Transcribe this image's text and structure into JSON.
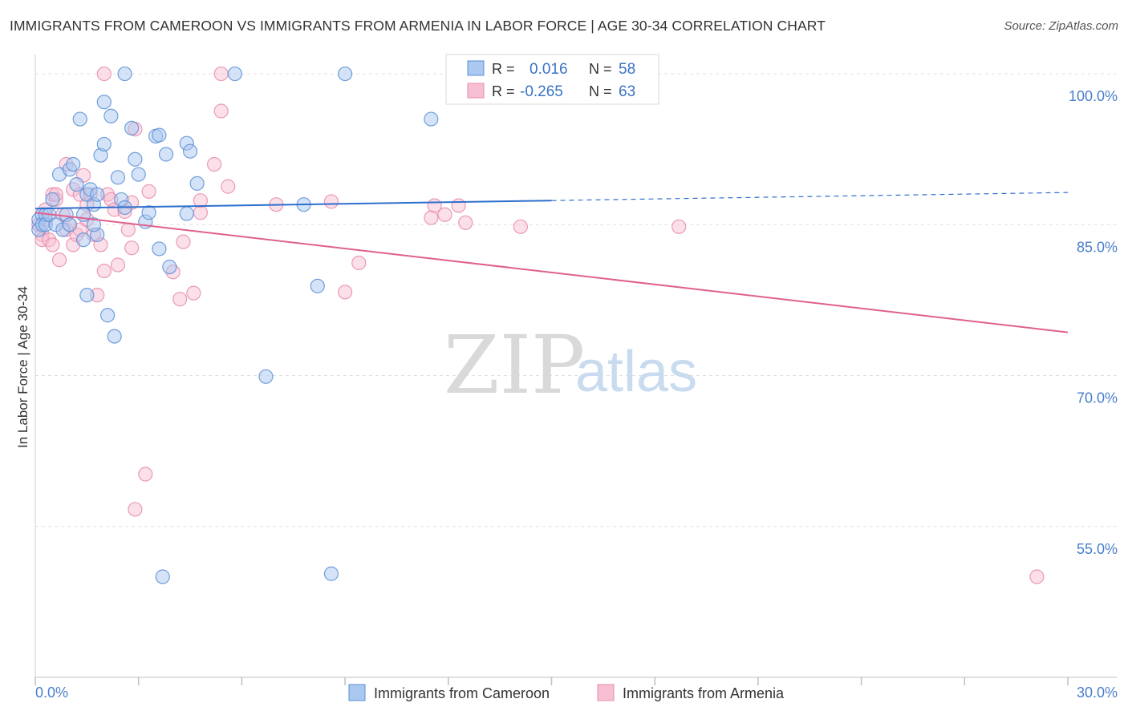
{
  "title": "IMMIGRANTS FROM CAMEROON VS IMMIGRANTS FROM ARMENIA IN LABOR FORCE | AGE 30-34 CORRELATION CHART",
  "source": "Source: ZipAtlas.com",
  "watermark": {
    "zip": "ZIP",
    "atlas": "atlas"
  },
  "colors": {
    "cameroon_fill": "#aac8f0",
    "cameroon_stroke": "#5b8fd6",
    "cameroon_line": "#2e6fcc",
    "armenia_fill": "#f7bfd3",
    "armenia_stroke": "#e88bab",
    "armenia_line": "#e0608e",
    "grid": "#e0e0e0",
    "axis": "#999999"
  },
  "legend": {
    "rows": [
      {
        "r_label": "R =",
        "r_value": "0.016",
        "n_label": "N =",
        "n_value": "58"
      },
      {
        "r_label": "R =",
        "r_value": "-0.265",
        "n_label": "N =",
        "n_value": "63"
      }
    ]
  },
  "chart_data": {
    "type": "scatter",
    "title": "IMMIGRANTS FROM CAMEROON VS IMMIGRANTS FROM ARMENIA IN LABOR FORCE | AGE 30-34 CORRELATION CHART",
    "xlabel": "",
    "ylabel": "In Labor Force | Age 30-34",
    "xlim": [
      0,
      30
    ],
    "ylim": [
      40,
      101.6
    ],
    "x_tick_labels": [
      "0.0%",
      "30.0%"
    ],
    "y_ticks": [
      55,
      70,
      85,
      100
    ],
    "y_tick_labels": [
      "55.0%",
      "70.0%",
      "85.0%",
      "100.0%"
    ],
    "grid": true,
    "legend_position": "bottom-center",
    "series": [
      {
        "name": "Immigrants from Cameroon",
        "r": 0.016,
        "n": 58,
        "trend": {
          "x0": 0,
          "y0": 86.6,
          "x1": 15,
          "y1": 87.4,
          "dashed_to_x": 30,
          "dashed_to_y": 88.2
        },
        "points": [
          [
            0.1,
            85.5
          ],
          [
            0.1,
            84.5
          ],
          [
            0.2,
            86.0
          ],
          [
            0.2,
            85.0
          ],
          [
            0.3,
            86.0
          ],
          [
            0.3,
            85.0
          ],
          [
            0.4,
            86.0
          ],
          [
            0.5,
            87.5
          ],
          [
            0.6,
            85.0
          ],
          [
            0.7,
            90.0
          ],
          [
            0.8,
            84.5
          ],
          [
            0.9,
            86.0
          ],
          [
            1.0,
            85.0
          ],
          [
            1.0,
            90.5
          ],
          [
            1.1,
            91.0
          ],
          [
            1.2,
            89.0
          ],
          [
            1.3,
            95.5
          ],
          [
            1.4,
            86.0
          ],
          [
            1.4,
            83.5
          ],
          [
            1.5,
            88.0
          ],
          [
            1.5,
            78.0
          ],
          [
            1.6,
            88.5
          ],
          [
            1.7,
            87.0
          ],
          [
            1.8,
            84.0
          ],
          [
            1.8,
            88.0
          ],
          [
            1.9,
            91.9
          ],
          [
            2.0,
            97.2
          ],
          [
            2.0,
            93.0
          ],
          [
            2.1,
            76.0
          ],
          [
            2.2,
            95.8
          ],
          [
            2.3,
            73.9
          ],
          [
            2.4,
            89.7
          ],
          [
            2.5,
            87.5
          ],
          [
            2.6,
            86.7
          ],
          [
            2.6,
            100.0
          ],
          [
            2.8,
            94.6
          ],
          [
            2.9,
            91.5
          ],
          [
            3.0,
            90.0
          ],
          [
            3.2,
            85.3
          ],
          [
            3.3,
            86.2
          ],
          [
            3.5,
            93.8
          ],
          [
            3.6,
            93.9
          ],
          [
            3.6,
            82.6
          ],
          [
            3.8,
            92.0
          ],
          [
            3.9,
            80.8
          ],
          [
            4.4,
            86.1
          ],
          [
            4.4,
            93.1
          ],
          [
            4.5,
            92.3
          ],
          [
            4.7,
            89.1
          ],
          [
            5.8,
            100.0
          ],
          [
            6.7,
            69.9
          ],
          [
            7.8,
            87.0
          ],
          [
            8.2,
            78.9
          ],
          [
            8.6,
            50.3
          ],
          [
            9.0,
            100.0
          ],
          [
            11.5,
            95.5
          ],
          [
            3.7,
            50.0
          ],
          [
            1.7,
            85.0
          ]
        ]
      },
      {
        "name": "Immigrants from Armenia",
        "r": -0.265,
        "n": 63,
        "trend": {
          "x0": 0,
          "y0": 86.2,
          "x1": 30,
          "y1": 74.3
        },
        "points": [
          [
            0.1,
            85.0
          ],
          [
            0.2,
            84.0
          ],
          [
            0.2,
            83.5
          ],
          [
            0.3,
            85.5
          ],
          [
            0.4,
            83.5
          ],
          [
            0.5,
            83.0
          ],
          [
            0.5,
            88.0
          ],
          [
            0.6,
            87.5
          ],
          [
            0.6,
            88.0
          ],
          [
            0.7,
            81.5
          ],
          [
            0.8,
            86.0
          ],
          [
            0.9,
            84.5
          ],
          [
            0.9,
            91.0
          ],
          [
            1.0,
            85.0
          ],
          [
            1.1,
            83.0
          ],
          [
            1.1,
            88.5
          ],
          [
            1.2,
            84.0
          ],
          [
            1.3,
            88.0
          ],
          [
            1.3,
            84.5
          ],
          [
            1.4,
            89.9
          ],
          [
            1.5,
            87.0
          ],
          [
            1.5,
            85.5
          ],
          [
            1.6,
            88.0
          ],
          [
            1.7,
            84.0
          ],
          [
            1.8,
            78.0
          ],
          [
            1.9,
            83.0
          ],
          [
            2.0,
            80.4
          ],
          [
            2.1,
            88.0
          ],
          [
            2.2,
            87.5
          ],
          [
            2.3,
            86.5
          ],
          [
            2.4,
            81.0
          ],
          [
            2.6,
            86.3
          ],
          [
            2.7,
            84.5
          ],
          [
            2.8,
            82.7
          ],
          [
            2.8,
            87.2
          ],
          [
            2.9,
            94.5
          ],
          [
            2.0,
            100.0
          ],
          [
            3.3,
            88.3
          ],
          [
            3.2,
            60.2
          ],
          [
            2.9,
            56.7
          ],
          [
            4.0,
            80.3
          ],
          [
            4.2,
            77.6
          ],
          [
            4.3,
            83.3
          ],
          [
            4.6,
            78.2
          ],
          [
            4.8,
            86.2
          ],
          [
            4.8,
            87.4
          ],
          [
            5.2,
            91.0
          ],
          [
            5.4,
            96.3
          ],
          [
            5.6,
            88.8
          ],
          [
            5.4,
            100.0
          ],
          [
            7.0,
            87.0
          ],
          [
            8.6,
            87.3
          ],
          [
            9.0,
            78.3
          ],
          [
            9.4,
            81.2
          ],
          [
            11.5,
            85.7
          ],
          [
            11.6,
            86.9
          ],
          [
            11.9,
            86.0
          ],
          [
            12.3,
            86.9
          ],
          [
            12.5,
            85.2
          ],
          [
            14.1,
            84.8
          ],
          [
            18.7,
            84.8
          ],
          [
            29.1,
            50.0
          ],
          [
            0.3,
            86.5
          ]
        ]
      }
    ]
  },
  "bottom_legend": [
    {
      "label": "Immigrants from Cameroon"
    },
    {
      "label": "Immigrants from Armenia"
    }
  ]
}
